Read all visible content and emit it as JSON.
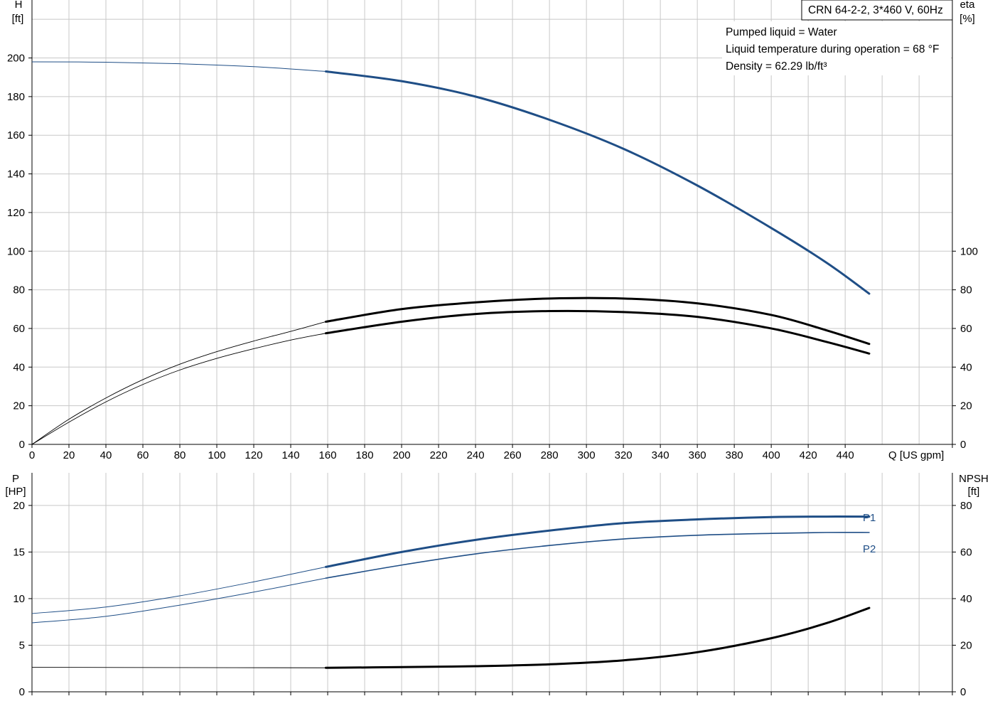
{
  "title_box": "CRN 64-2-2, 3*460 V, 60Hz",
  "info_lines": [
    "Pumped liquid = Water",
    "Liquid temperature during operation = 68 °F",
    "Density = 62.29 lb/ft³"
  ],
  "colors": {
    "blue": "#1f4e86",
    "black": "#000000",
    "grid": "#c8c8c8"
  },
  "chart_data": [
    {
      "type": "line",
      "title": "",
      "xlabel": "Q [US gpm]",
      "xlim": [
        0,
        498
      ],
      "xticks": [
        0,
        20,
        40,
        60,
        80,
        100,
        120,
        140,
        160,
        180,
        200,
        220,
        240,
        260,
        280,
        300,
        320,
        340,
        360,
        380,
        400,
        420,
        440
      ],
      "left_axis": {
        "label_top": "H",
        "label_unit": "[ft]",
        "ylim": [
          0,
          230
        ],
        "ticks": [
          0,
          20,
          40,
          60,
          80,
          100,
          120,
          140,
          160,
          180,
          200
        ]
      },
      "right_axis": {
        "label_top": "eta",
        "label_unit": "[%]",
        "ylim": [
          0,
          230
        ],
        "ticks": [
          0,
          20,
          40,
          60,
          80,
          100
        ]
      },
      "grid": true,
      "operating_start": 159,
      "series": [
        {
          "key": "H",
          "axis": "left",
          "color": "blue",
          "x": [
            0,
            40,
            80,
            120,
            159,
            200,
            240,
            280,
            320,
            360,
            400,
            430,
            453
          ],
          "y": [
            198,
            197.8,
            197,
            195.5,
            193,
            188,
            180,
            168,
            153,
            134,
            112,
            94,
            78
          ]
        },
        {
          "key": "eta_pump",
          "axis": "right",
          "color": "black",
          "x": [
            0,
            20,
            40,
            60,
            80,
            100,
            120,
            140,
            159,
            200,
            240,
            280,
            320,
            360,
            400,
            430,
            453
          ],
          "y": [
            0,
            13,
            24,
            33.5,
            41.5,
            48,
            53.5,
            58.5,
            63.5,
            70,
            73.5,
            75.5,
            75.5,
            73,
            67,
            59,
            52
          ]
        },
        {
          "key": "eta_total",
          "axis": "right",
          "color": "black",
          "x": [
            0,
            20,
            40,
            60,
            80,
            100,
            120,
            140,
            159,
            200,
            240,
            280,
            320,
            360,
            400,
            430,
            453
          ],
          "y": [
            0,
            11.5,
            22,
            31,
            38.5,
            44.5,
            49.5,
            54,
            57.5,
            63.5,
            67.5,
            69,
            68.5,
            66,
            60,
            53,
            47
          ]
        }
      ]
    },
    {
      "type": "line",
      "title": "",
      "xlim": [
        0,
        498
      ],
      "left_axis": {
        "label_top": "P",
        "label_unit": "[HP]",
        "ylim": [
          0,
          23.5
        ],
        "ticks": [
          0,
          5,
          10,
          15,
          20
        ]
      },
      "right_axis": {
        "label_top": "NPSH",
        "label_unit": "[ft]",
        "ylim": [
          0,
          94
        ],
        "ticks": [
          0,
          20,
          40,
          60,
          80
        ]
      },
      "grid": true,
      "operating_start": 159,
      "series": [
        {
          "key": "P1",
          "name": "P1",
          "axis": "left",
          "color": "blue",
          "x": [
            0,
            40,
            80,
            120,
            159,
            200,
            240,
            280,
            320,
            360,
            400,
            430,
            453
          ],
          "y": [
            8.4,
            9.1,
            10.3,
            11.8,
            13.4,
            15.0,
            16.3,
            17.3,
            18.1,
            18.5,
            18.75,
            18.8,
            18.8
          ]
        },
        {
          "key": "P2",
          "name": "P2",
          "axis": "left",
          "color": "blue",
          "x": [
            0,
            40,
            80,
            120,
            159,
            200,
            240,
            280,
            320,
            360,
            400,
            430,
            453
          ],
          "y": [
            7.4,
            8.1,
            9.3,
            10.7,
            12.2,
            13.6,
            14.8,
            15.7,
            16.4,
            16.8,
            17.0,
            17.1,
            17.1
          ]
        },
        {
          "key": "NPSH",
          "axis": "right",
          "color": "black",
          "x": [
            0,
            80,
            159,
            200,
            240,
            280,
            320,
            360,
            400,
            430,
            453
          ],
          "y": [
            10.5,
            10.4,
            10.3,
            10.6,
            11.0,
            11.8,
            13.5,
            17,
            23,
            29.5,
            36
          ]
        }
      ]
    }
  ]
}
